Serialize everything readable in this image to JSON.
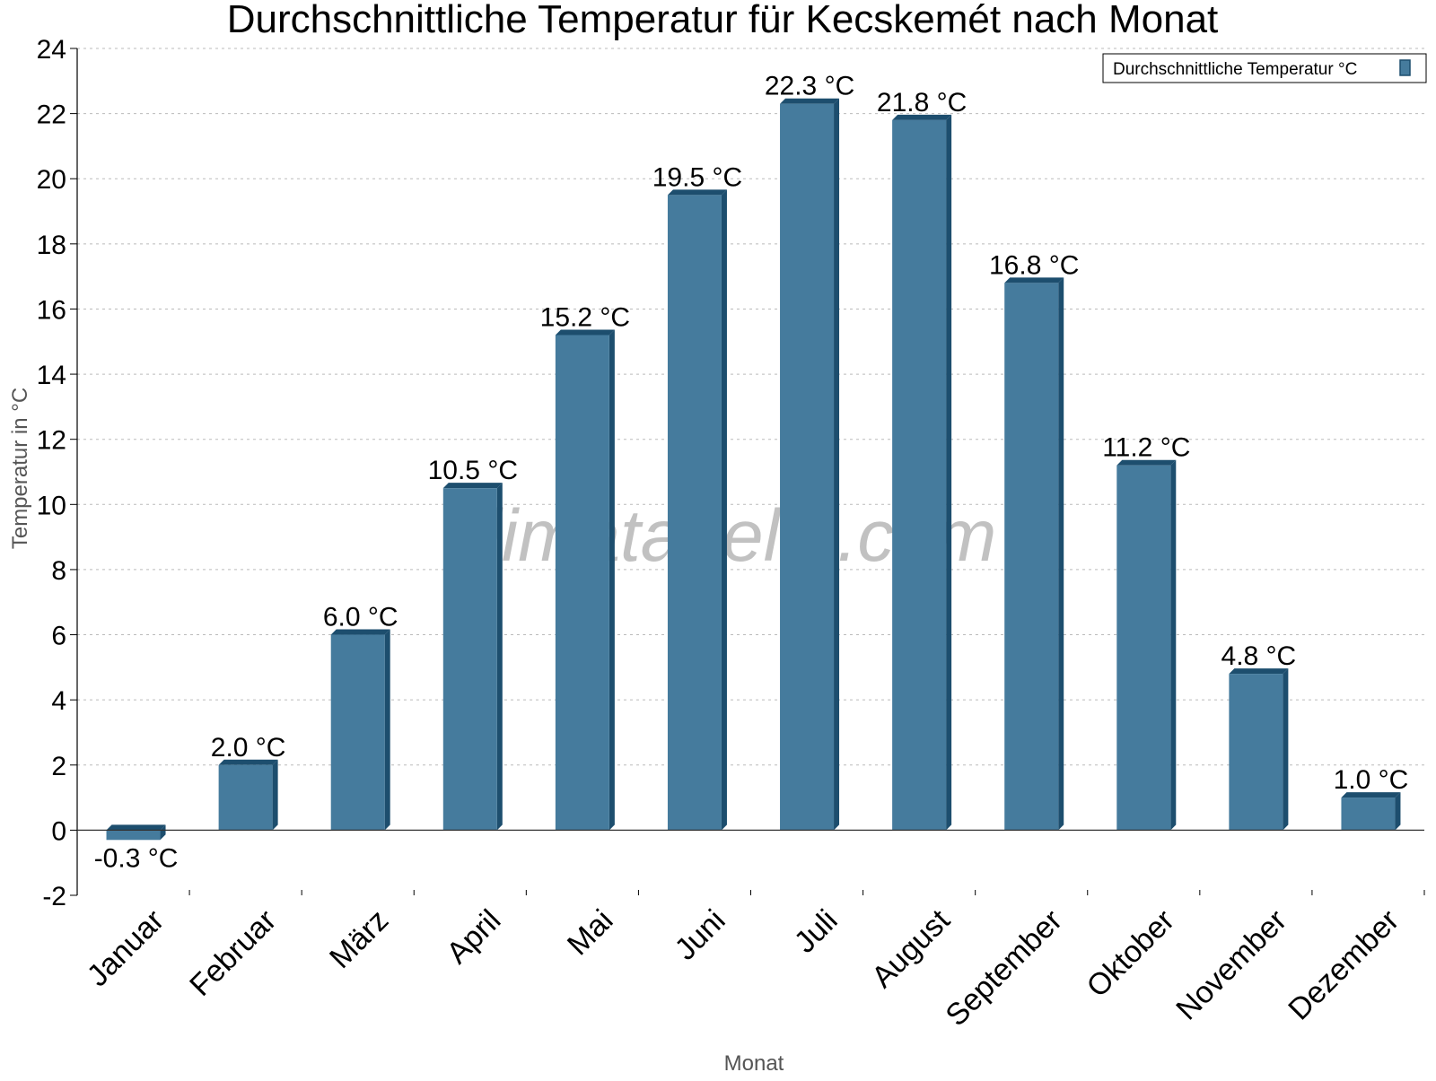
{
  "chart_data": {
    "type": "bar",
    "title": "Durchschnittliche Temperatur für Kecskemét nach Monat",
    "xlabel": "Monat",
    "ylabel": "Temperatur in °C",
    "ylim": [
      -2,
      24
    ],
    "ytick_step": 2,
    "grid": true,
    "legend_position": "top-right",
    "categories": [
      "Januar",
      "Februar",
      "März",
      "April",
      "Mai",
      "Juni",
      "Juli",
      "August",
      "September",
      "Oktober",
      "November",
      "Dezember"
    ],
    "series": [
      {
        "name": "Durchschnittliche Temperatur °C",
        "values": [
          -0.3,
          2.0,
          6.0,
          10.5,
          15.2,
          19.5,
          22.3,
          21.8,
          16.8,
          11.2,
          4.8,
          1.0
        ],
        "labels": [
          "-0.3 °C",
          "2.0 °C",
          "6.0 °C",
          "10.5 °C",
          "15.2 °C",
          "19.5 °C",
          "22.3 °C",
          "21.8 °C",
          "16.8 °C",
          "11.2 °C",
          "4.8 °C",
          "1.0 °C"
        ],
        "color": "#457b9d",
        "edge_color": "#1d4e6e"
      }
    ],
    "watermark": "klimatabelle.com"
  }
}
